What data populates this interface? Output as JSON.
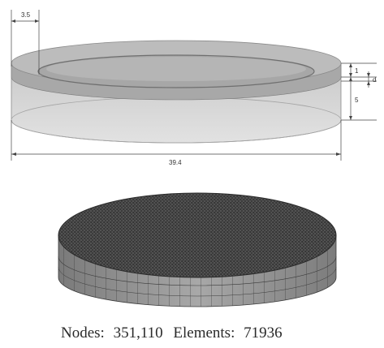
{
  "dimensions": {
    "inset_width": "3.5",
    "top_layer": "1",
    "offset": "d",
    "base_height": "5",
    "diameter": "39.4"
  },
  "caption": {
    "nodes_label": "Nodes:",
    "nodes_value": "351,110",
    "elements_label": "Elements:",
    "elements_value": "71936"
  },
  "colors": {
    "cylinder_body": "#cfcfcf",
    "layer_band": "#9a9a9a",
    "mesh_top": "#3a3a3a",
    "mesh_side": "#8c8c8c",
    "dimension_lines": "#444444"
  }
}
